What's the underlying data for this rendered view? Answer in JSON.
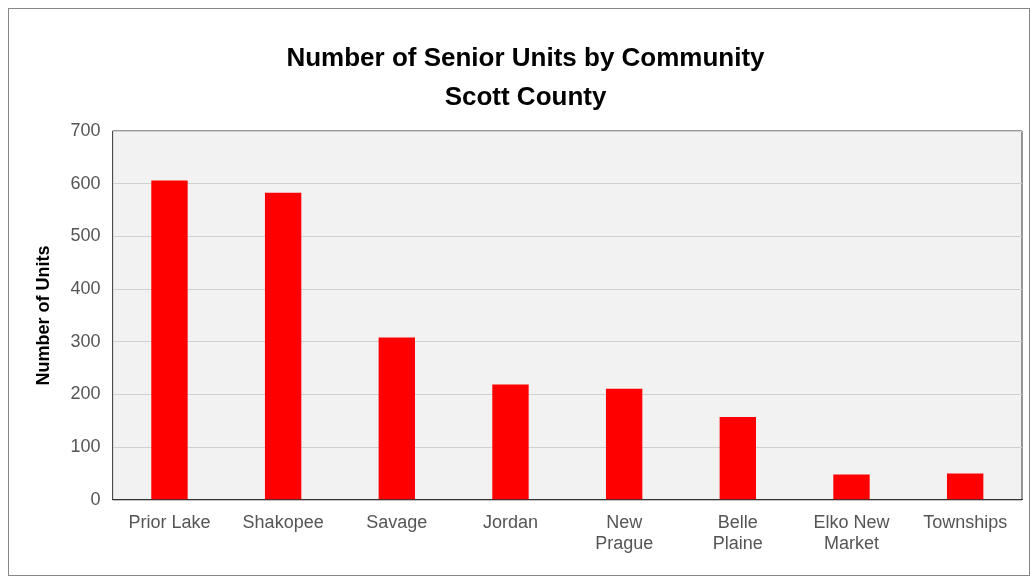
{
  "chart_data": {
    "type": "bar",
    "title": [
      "Number of Senior Units by Community",
      "Scott County"
    ],
    "ylabel": "Number of Units",
    "categories": [
      "Prior Lake",
      "Shakopee",
      "Savage",
      "Jordan",
      "New Prague",
      "Belle Plaine",
      "Elko New Market",
      "Townships"
    ],
    "values": [
      606,
      583,
      308,
      219,
      211,
      157,
      48,
      50
    ],
    "color": "#ff0000",
    "ylim": [
      0,
      700
    ],
    "yticks": [
      0,
      100,
      200,
      300,
      400,
      500,
      600,
      700
    ],
    "grid": "y"
  }
}
